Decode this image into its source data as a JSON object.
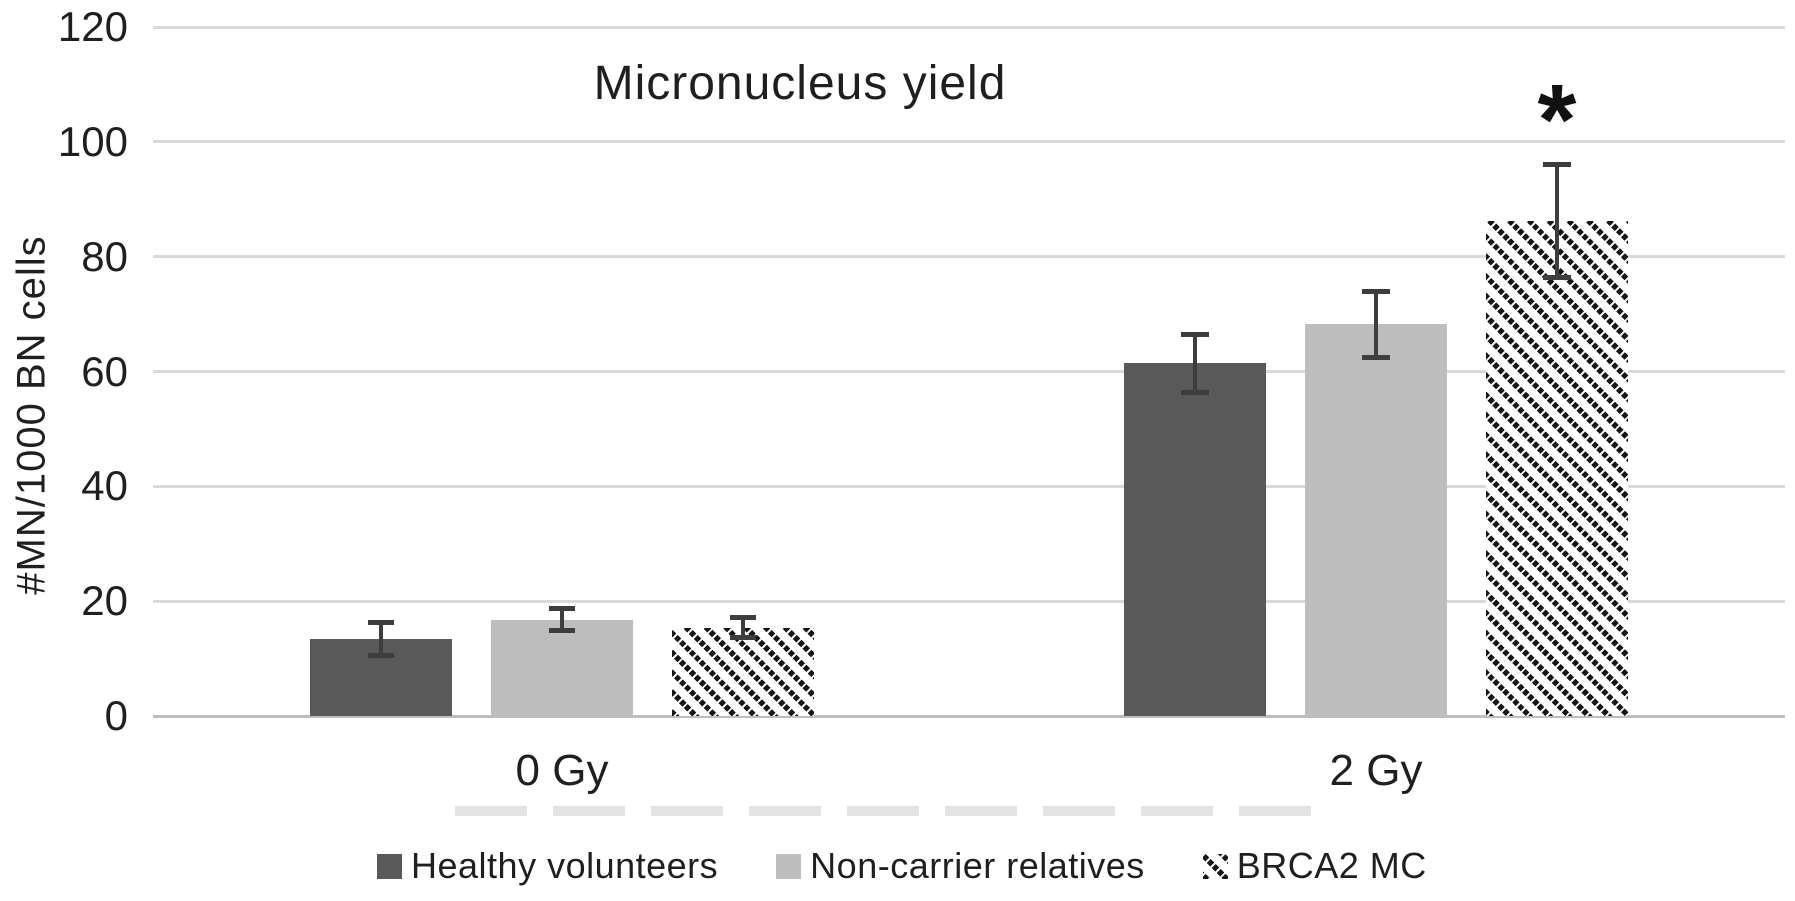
{
  "chart_data": {
    "type": "bar",
    "title": "Micronucleus yield",
    "xlabel": "",
    "ylabel": "#MN/1000 BN cells",
    "categories": [
      "0 Gy",
      "2 Gy"
    ],
    "series": [
      {
        "name": "Healthy volunteers",
        "style": "solid-dark",
        "color": "#595959",
        "values": [
          13.4,
          61.4
        ],
        "errors": [
          2.8,
          5.0
        ]
      },
      {
        "name": "Non-carrier relatives",
        "style": "solid-light",
        "color": "#bdbdbd",
        "values": [
          16.8,
          68.2
        ],
        "errors": [
          1.9,
          5.6
        ]
      },
      {
        "name": "BRCA2 MC",
        "style": "hatch",
        "color": "#161616",
        "values": [
          15.4,
          86.2
        ],
        "errors": [
          1.7,
          9.8
        ]
      }
    ],
    "yticks": [
      0,
      20,
      40,
      60,
      80,
      100,
      120
    ],
    "ylim": [
      0,
      120
    ],
    "grid": true,
    "legend_position": "bottom",
    "error_bar_color": "#3d3d3d",
    "gridline_color": "#d9d9d9",
    "annotations": [
      {
        "text": "*",
        "category": "2 Gy",
        "series": "BRCA2 MC"
      }
    ]
  }
}
